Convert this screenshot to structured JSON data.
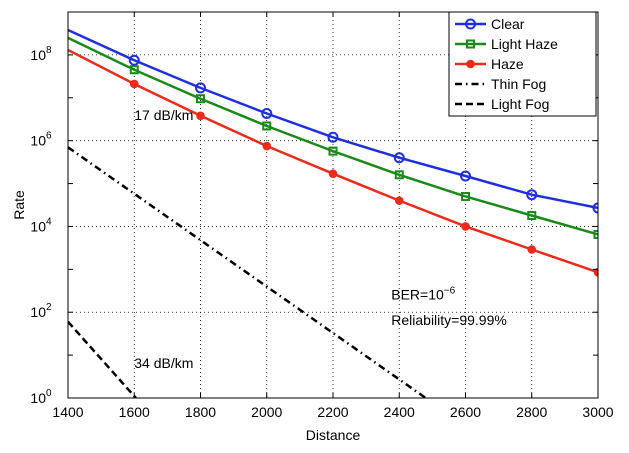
{
  "chart_data": {
    "type": "line",
    "xlabel": "Distance",
    "ylabel": "Rate",
    "xlim": [
      1400,
      3000
    ],
    "ylim_log10": [
      0,
      9
    ],
    "y_scale": "log",
    "grid": true,
    "legend_position": "top-right",
    "x_ticks": [
      "1400",
      "1600",
      "1800",
      "2000",
      "2200",
      "2400",
      "2600",
      "2800",
      "3000"
    ],
    "y_ticks": [
      {
        "base": "10",
        "exp": "0"
      },
      {
        "base": "10",
        "exp": "2"
      },
      {
        "base": "10",
        "exp": "4"
      },
      {
        "base": "10",
        "exp": "6"
      },
      {
        "base": "10",
        "exp": "8"
      }
    ],
    "series": [
      {
        "name": "Clear",
        "color": "#1f2fe0",
        "marker": "circle",
        "dash": "solid",
        "x": [
          1400,
          1600,
          1800,
          2000,
          2200,
          2400,
          2600,
          2800,
          3000
        ],
        "y": [
          380000000,
          75000000,
          17000000,
          4300000,
          1200000,
          400000,
          150000,
          55000,
          27000
        ]
      },
      {
        "name": "Light Haze",
        "color": "#1a8a1a",
        "marker": "square",
        "dash": "solid",
        "x": [
          1400,
          1600,
          1800,
          2000,
          2200,
          2400,
          2600,
          2800,
          3000
        ],
        "y": [
          250000000,
          45000000,
          9500000,
          2200000,
          570000,
          160000,
          50000,
          18000,
          6500
        ]
      },
      {
        "name": "Haze",
        "color": "#ee2a1a",
        "marker": "dot",
        "dash": "solid",
        "x": [
          1400,
          1600,
          1800,
          2000,
          2200,
          2400,
          2600,
          2800,
          3000
        ],
        "y": [
          130000000,
          21000000,
          3800000,
          750000,
          170000,
          40000,
          10000,
          2900,
          850
        ]
      },
      {
        "name": "Thin Fog",
        "color": "#000000",
        "marker": "none",
        "dash": "dashdot",
        "x": [
          1400,
          2480
        ],
        "y": [
          700000,
          1
        ]
      },
      {
        "name": "Light Fog",
        "color": "#000000",
        "marker": "none",
        "dash": "dashed",
        "x": [
          1400,
          1605
        ],
        "y": [
          60,
          1
        ]
      }
    ],
    "annotations": [
      {
        "text": "17 dB/km",
        "x": 1600,
        "y": 3000000
      },
      {
        "text": "34 dB/km",
        "x": 1600,
        "y": 5
      },
      {
        "text_base": "BER=10",
        "text_exp": "−6",
        "x": 2400,
        "y": 200
      },
      {
        "text": "Reliability=99.99%",
        "x": 2400,
        "y": 50
      }
    ]
  }
}
